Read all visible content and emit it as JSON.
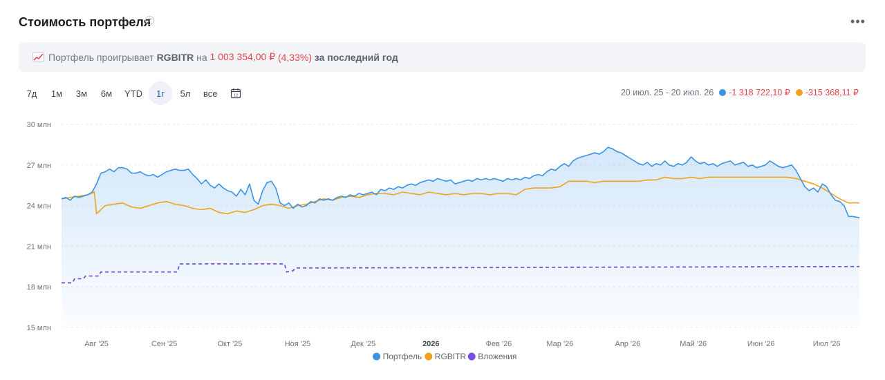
{
  "header": {
    "title": "Стоимость портфеля",
    "help_icon": "question-circle-icon",
    "more_icon": "more-dots-icon"
  },
  "banner": {
    "icon": "chart-increasing-emoji-icon",
    "text_before": "Портфель проигрывает ",
    "benchmark": "RGBITR",
    "text_na": " на ",
    "amount": "1 003 354,00 ₽",
    "percent": " (4,33%)",
    "text_after": " за последний год"
  },
  "periods": {
    "items": [
      "7д",
      "1м",
      "3м",
      "6м",
      "YTD",
      "1г",
      "5л",
      "все"
    ],
    "active": "1г",
    "calendar_icon": "calendar-icon"
  },
  "range": {
    "dates": "20 июл. 25 - 20 июл. 26",
    "portfolio_change": "-1 318 722,10 ₽",
    "benchmark_change": "-315 368,11 ₽"
  },
  "colors": {
    "portfolio": "#3a93e6",
    "benchmark": "#f0a21b",
    "investments": "#7a4fe0",
    "negative": "#e6454d"
  },
  "chart_data": {
    "type": "line",
    "title": "Стоимость портфеля",
    "xlabel": "",
    "ylabel": "",
    "ylim": [
      15,
      30
    ],
    "xlim": [
      0,
      365
    ],
    "y_ticks": [
      30,
      27,
      24,
      21,
      18,
      15
    ],
    "y_tick_labels": [
      "30 млн",
      "27 млн",
      "24 млн",
      "21 млн",
      "18 млн",
      "15 млн"
    ],
    "x_ticks": [
      {
        "x": 16,
        "label": "Авг '25",
        "bold": false
      },
      {
        "x": 47,
        "label": "Сен '25",
        "bold": false
      },
      {
        "x": 77,
        "label": "Окт '25",
        "bold": false
      },
      {
        "x": 108,
        "label": "Ноя '25",
        "bold": false
      },
      {
        "x": 138,
        "label": "Дек '25",
        "bold": false
      },
      {
        "x": 169,
        "label": "2026",
        "bold": true
      },
      {
        "x": 200,
        "label": "Фев '26",
        "bold": false
      },
      {
        "x": 228,
        "label": "Мар '26",
        "bold": false
      },
      {
        "x": 259,
        "label": "Апр '26",
        "bold": false
      },
      {
        "x": 289,
        "label": "Май '26",
        "bold": false
      },
      {
        "x": 320,
        "label": "Июн '26",
        "bold": false
      },
      {
        "x": 350,
        "label": "Июл '26",
        "bold": false
      }
    ],
    "grid": true,
    "legend_position": "bottom",
    "legend": [
      "Портфель",
      "RGBITR",
      "Вложения"
    ],
    "series": [
      {
        "name": "Портфель",
        "style": "solid-filled",
        "points": [
          [
            0,
            24.5
          ],
          [
            2,
            24.6
          ],
          [
            4,
            24.4
          ],
          [
            6,
            24.7
          ],
          [
            8,
            24.6
          ],
          [
            10,
            24.7
          ],
          [
            12,
            24.8
          ],
          [
            14,
            25.0
          ],
          [
            16,
            25.6
          ],
          [
            18,
            26.4
          ],
          [
            20,
            26.5
          ],
          [
            22,
            26.7
          ],
          [
            24,
            26.5
          ],
          [
            26,
            26.8
          ],
          [
            28,
            26.8
          ],
          [
            30,
            26.7
          ],
          [
            32,
            26.4
          ],
          [
            34,
            26.4
          ],
          [
            36,
            26.5
          ],
          [
            38,
            26.3
          ],
          [
            40,
            26.2
          ],
          [
            42,
            26.3
          ],
          [
            44,
            26.1
          ],
          [
            46,
            26.3
          ],
          [
            48,
            26.5
          ],
          [
            50,
            26.6
          ],
          [
            52,
            26.7
          ],
          [
            54,
            26.6
          ],
          [
            56,
            26.6
          ],
          [
            58,
            26.7
          ],
          [
            60,
            26.3
          ],
          [
            62,
            26.0
          ],
          [
            64,
            25.6
          ],
          [
            66,
            25.9
          ],
          [
            68,
            25.5
          ],
          [
            70,
            25.3
          ],
          [
            72,
            25.6
          ],
          [
            74,
            25.3
          ],
          [
            76,
            25.1
          ],
          [
            78,
            25.0
          ],
          [
            80,
            24.7
          ],
          [
            82,
            25.2
          ],
          [
            84,
            24.8
          ],
          [
            86,
            25.6
          ],
          [
            88,
            24.4
          ],
          [
            90,
            24.1
          ],
          [
            92,
            25.1
          ],
          [
            94,
            25.7
          ],
          [
            96,
            25.8
          ],
          [
            98,
            25.3
          ],
          [
            100,
            24.2
          ],
          [
            102,
            24.0
          ],
          [
            104,
            24.2
          ],
          [
            106,
            23.8
          ],
          [
            108,
            24.1
          ],
          [
            110,
            23.9
          ],
          [
            112,
            24.0
          ],
          [
            114,
            24.3
          ],
          [
            116,
            24.2
          ],
          [
            118,
            24.5
          ],
          [
            120,
            24.4
          ],
          [
            122,
            24.5
          ],
          [
            124,
            24.4
          ],
          [
            126,
            24.6
          ],
          [
            128,
            24.7
          ],
          [
            130,
            24.6
          ],
          [
            132,
            24.8
          ],
          [
            134,
            24.7
          ],
          [
            136,
            24.9
          ],
          [
            138,
            24.8
          ],
          [
            140,
            24.9
          ],
          [
            142,
            25.0
          ],
          [
            144,
            24.8
          ],
          [
            146,
            25.2
          ],
          [
            148,
            25.1
          ],
          [
            150,
            25.3
          ],
          [
            152,
            25.2
          ],
          [
            154,
            25.4
          ],
          [
            156,
            25.3
          ],
          [
            158,
            25.5
          ],
          [
            160,
            25.6
          ],
          [
            162,
            25.5
          ],
          [
            164,
            25.7
          ],
          [
            166,
            25.8
          ],
          [
            168,
            25.9
          ],
          [
            170,
            25.8
          ],
          [
            172,
            26.0
          ],
          [
            174,
            25.9
          ],
          [
            176,
            25.8
          ],
          [
            178,
            25.9
          ],
          [
            180,
            25.6
          ],
          [
            182,
            25.7
          ],
          [
            184,
            25.8
          ],
          [
            186,
            25.9
          ],
          [
            188,
            25.8
          ],
          [
            190,
            26.0
          ],
          [
            192,
            25.9
          ],
          [
            194,
            26.0
          ],
          [
            196,
            25.9
          ],
          [
            198,
            26.0
          ],
          [
            200,
            25.9
          ],
          [
            202,
            25.8
          ],
          [
            204,
            26.0
          ],
          [
            206,
            25.9
          ],
          [
            208,
            26.0
          ],
          [
            210,
            25.9
          ],
          [
            212,
            26.1
          ],
          [
            214,
            26.0
          ],
          [
            216,
            26.2
          ],
          [
            218,
            26.3
          ],
          [
            220,
            26.2
          ],
          [
            222,
            26.5
          ],
          [
            224,
            26.7
          ],
          [
            226,
            26.6
          ],
          [
            228,
            26.9
          ],
          [
            230,
            27.1
          ],
          [
            232,
            26.9
          ],
          [
            234,
            27.3
          ],
          [
            236,
            27.5
          ],
          [
            238,
            27.6
          ],
          [
            240,
            27.7
          ],
          [
            242,
            27.8
          ],
          [
            244,
            27.9
          ],
          [
            246,
            27.8
          ],
          [
            248,
            28.0
          ],
          [
            250,
            28.3
          ],
          [
            252,
            28.2
          ],
          [
            254,
            28.0
          ],
          [
            256,
            27.9
          ],
          [
            258,
            27.7
          ],
          [
            260,
            27.5
          ],
          [
            262,
            27.3
          ],
          [
            264,
            27.1
          ],
          [
            266,
            27.0
          ],
          [
            268,
            27.2
          ],
          [
            270,
            26.9
          ],
          [
            272,
            27.1
          ],
          [
            274,
            27.0
          ],
          [
            276,
            27.3
          ],
          [
            278,
            27.0
          ],
          [
            280,
            26.9
          ],
          [
            282,
            27.1
          ],
          [
            284,
            27.0
          ],
          [
            286,
            27.2
          ],
          [
            288,
            27.6
          ],
          [
            290,
            27.3
          ],
          [
            292,
            27.1
          ],
          [
            294,
            27.2
          ],
          [
            296,
            27.0
          ],
          [
            298,
            27.1
          ],
          [
            300,
            26.9
          ],
          [
            302,
            27.1
          ],
          [
            304,
            27.2
          ],
          [
            306,
            27.3
          ],
          [
            308,
            27.0
          ],
          [
            310,
            27.1
          ],
          [
            312,
            27.2
          ],
          [
            314,
            26.9
          ],
          [
            316,
            27.0
          ],
          [
            318,
            26.8
          ],
          [
            320,
            26.9
          ],
          [
            322,
            27.0
          ],
          [
            324,
            27.3
          ],
          [
            326,
            27.1
          ],
          [
            328,
            26.9
          ],
          [
            330,
            26.8
          ],
          [
            332,
            26.9
          ],
          [
            334,
            27.0
          ],
          [
            336,
            26.6
          ],
          [
            338,
            26.0
          ],
          [
            340,
            25.4
          ],
          [
            342,
            25.1
          ],
          [
            344,
            25.3
          ],
          [
            346,
            25.0
          ],
          [
            348,
            25.6
          ],
          [
            350,
            25.4
          ],
          [
            352,
            24.8
          ],
          [
            354,
            24.4
          ],
          [
            356,
            24.3
          ],
          [
            358,
            24.0
          ],
          [
            360,
            23.2
          ],
          [
            362,
            23.2
          ],
          [
            365,
            23.1
          ]
        ]
      },
      {
        "name": "RGBITR",
        "style": "solid",
        "points": [
          [
            0,
            24.5
          ],
          [
            4,
            24.6
          ],
          [
            8,
            24.7
          ],
          [
            12,
            24.8
          ],
          [
            15,
            25.0
          ],
          [
            16,
            23.4
          ],
          [
            18,
            23.7
          ],
          [
            20,
            24.0
          ],
          [
            24,
            24.1
          ],
          [
            28,
            24.2
          ],
          [
            32,
            23.9
          ],
          [
            36,
            23.8
          ],
          [
            40,
            24.0
          ],
          [
            44,
            24.2
          ],
          [
            48,
            24.3
          ],
          [
            52,
            24.1
          ],
          [
            56,
            24.0
          ],
          [
            60,
            23.8
          ],
          [
            64,
            23.7
          ],
          [
            68,
            23.8
          ],
          [
            72,
            23.5
          ],
          [
            76,
            23.4
          ],
          [
            80,
            23.6
          ],
          [
            84,
            23.5
          ],
          [
            88,
            23.7
          ],
          [
            92,
            24.0
          ],
          [
            96,
            24.1
          ],
          [
            100,
            24.0
          ],
          [
            104,
            23.8
          ],
          [
            108,
            24.0
          ],
          [
            112,
            24.1
          ],
          [
            116,
            24.3
          ],
          [
            120,
            24.5
          ],
          [
            124,
            24.4
          ],
          [
            128,
            24.6
          ],
          [
            132,
            24.7
          ],
          [
            136,
            24.6
          ],
          [
            140,
            24.8
          ],
          [
            144,
            24.9
          ],
          [
            148,
            24.9
          ],
          [
            152,
            24.8
          ],
          [
            156,
            25.0
          ],
          [
            160,
            24.9
          ],
          [
            164,
            24.8
          ],
          [
            168,
            25.0
          ],
          [
            172,
            24.9
          ],
          [
            176,
            24.8
          ],
          [
            180,
            24.9
          ],
          [
            184,
            24.8
          ],
          [
            188,
            24.9
          ],
          [
            192,
            24.9
          ],
          [
            196,
            24.8
          ],
          [
            200,
            24.9
          ],
          [
            204,
            24.9
          ],
          [
            208,
            24.8
          ],
          [
            212,
            25.2
          ],
          [
            216,
            25.3
          ],
          [
            220,
            25.3
          ],
          [
            224,
            25.3
          ],
          [
            228,
            25.4
          ],
          [
            232,
            25.8
          ],
          [
            236,
            25.8
          ],
          [
            240,
            25.8
          ],
          [
            244,
            25.7
          ],
          [
            248,
            25.8
          ],
          [
            252,
            25.8
          ],
          [
            256,
            25.8
          ],
          [
            260,
            25.8
          ],
          [
            264,
            25.8
          ],
          [
            268,
            25.9
          ],
          [
            272,
            25.9
          ],
          [
            276,
            26.1
          ],
          [
            280,
            26.0
          ],
          [
            284,
            26.0
          ],
          [
            288,
            26.1
          ],
          [
            292,
            26.0
          ],
          [
            296,
            26.1
          ],
          [
            300,
            26.1
          ],
          [
            304,
            26.1
          ],
          [
            308,
            26.1
          ],
          [
            312,
            26.1
          ],
          [
            316,
            26.1
          ],
          [
            320,
            26.1
          ],
          [
            324,
            26.1
          ],
          [
            328,
            26.1
          ],
          [
            332,
            26.1
          ],
          [
            336,
            26.0
          ],
          [
            340,
            25.8
          ],
          [
            344,
            25.6
          ],
          [
            348,
            25.3
          ],
          [
            352,
            24.9
          ],
          [
            356,
            24.5
          ],
          [
            360,
            24.2
          ],
          [
            365,
            24.2
          ]
        ]
      },
      {
        "name": "Вложения",
        "style": "dashed",
        "points": [
          [
            0,
            18.3
          ],
          [
            5,
            18.3
          ],
          [
            6,
            18.6
          ],
          [
            10,
            18.6
          ],
          [
            11,
            18.8
          ],
          [
            17,
            18.8
          ],
          [
            18,
            19.1
          ],
          [
            53,
            19.1
          ],
          [
            54,
            19.7
          ],
          [
            102,
            19.7
          ],
          [
            103,
            19.1
          ],
          [
            106,
            19.2
          ],
          [
            107,
            19.4
          ],
          [
            365,
            19.5
          ]
        ]
      }
    ]
  }
}
